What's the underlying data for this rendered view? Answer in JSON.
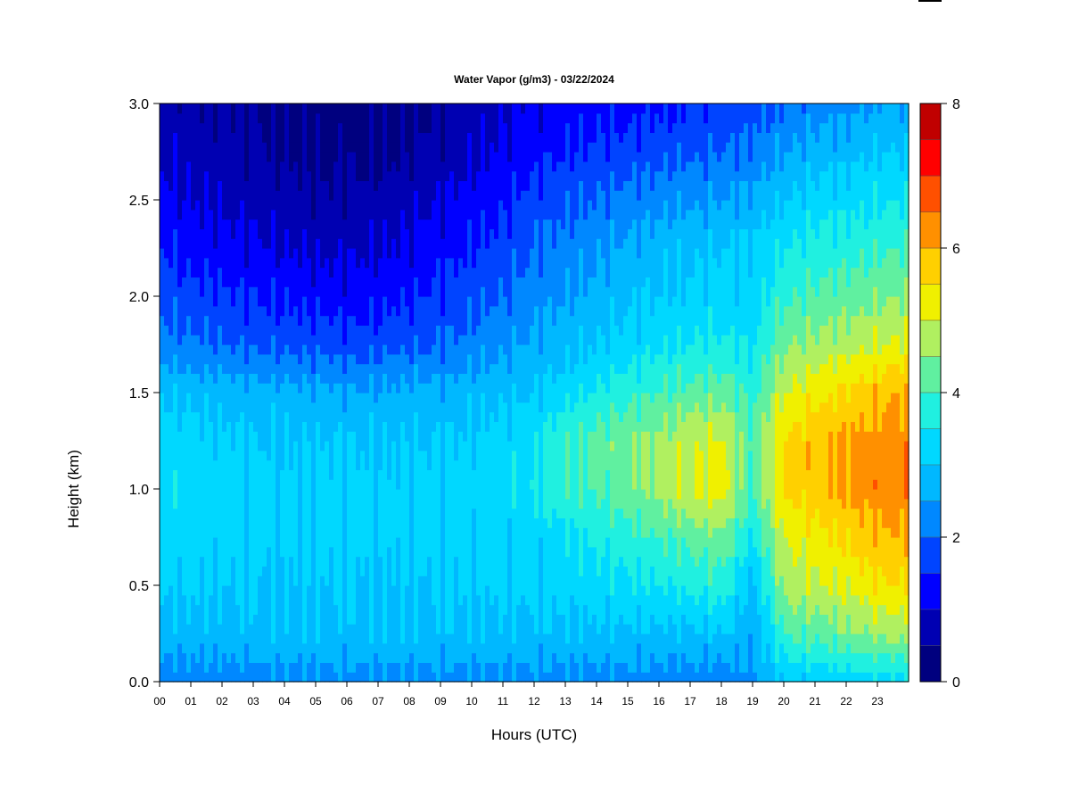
{
  "chart_data": {
    "type": "heatmap",
    "title": "Water Vapor (g/m3) - 03/22/2024",
    "xlabel": "Hours (UTC)",
    "ylabel": "Height (km)",
    "x_ticks": [
      "00",
      "01",
      "02",
      "03",
      "04",
      "05",
      "06",
      "07",
      "08",
      "09",
      "10",
      "11",
      "12",
      "13",
      "14",
      "15",
      "16",
      "17",
      "18",
      "19",
      "20",
      "21",
      "22",
      "23"
    ],
    "x_range": [
      0,
      24
    ],
    "y_ticks": [
      "0.0",
      "0.5",
      "1.0",
      "1.5",
      "2.0",
      "2.5",
      "3.0"
    ],
    "y_range": [
      0.0,
      3.0
    ],
    "colorbar": {
      "ticks": [
        "0",
        "2",
        "4",
        "6",
        "8"
      ],
      "range": [
        0,
        8
      ],
      "levels": 16,
      "colors": [
        "#00007f",
        "#0000b2",
        "#0000ff",
        "#0044ff",
        "#0088ff",
        "#00b8ff",
        "#00d8ff",
        "#20f0e0",
        "#60f0a0",
        "#b0f060",
        "#f0f000",
        "#ffd000",
        "#ff9000",
        "#ff5000",
        "#ff0000",
        "#c00000",
        "#800000"
      ]
    },
    "values_heights_km": [
      0.0,
      0.25,
      0.5,
      0.75,
      1.0,
      1.25,
      1.5,
      1.75,
      2.0,
      2.25,
      2.5,
      2.75,
      3.0
    ],
    "values_by_hour": [
      [
        2.2,
        2.8,
        3.1,
        3.2,
        3.3,
        3.2,
        3.0,
        2.2,
        1.9,
        1.5,
        1.2,
        0.9,
        0.7
      ],
      [
        2.2,
        2.8,
        3.1,
        3.2,
        3.3,
        3.2,
        2.9,
        2.1,
        1.7,
        1.3,
        1.0,
        0.8,
        0.6
      ],
      [
        2.2,
        2.8,
        3.0,
        3.2,
        3.3,
        3.1,
        2.8,
        2.0,
        1.6,
        1.2,
        0.9,
        0.7,
        0.5
      ],
      [
        2.2,
        2.9,
        3.0,
        3.1,
        3.2,
        3.0,
        2.7,
        1.9,
        1.5,
        1.1,
        0.8,
        0.6,
        0.5
      ],
      [
        2.3,
        2.9,
        3.0,
        3.1,
        3.1,
        3.0,
        2.7,
        1.8,
        1.4,
        1.0,
        0.7,
        0.5,
        0.4
      ],
      [
        2.3,
        2.9,
        3.0,
        3.1,
        3.1,
        3.0,
        2.6,
        1.8,
        1.3,
        0.9,
        0.6,
        0.4,
        0.3
      ],
      [
        2.3,
        2.9,
        3.0,
        3.1,
        3.1,
        3.0,
        2.6,
        1.7,
        1.2,
        0.9,
        0.6,
        0.4,
        0.3
      ],
      [
        2.3,
        2.9,
        3.0,
        3.1,
        3.1,
        3.0,
        2.6,
        1.8,
        1.3,
        1.0,
        0.7,
        0.4,
        0.3
      ],
      [
        2.3,
        2.9,
        3.0,
        3.1,
        3.1,
        3.0,
        2.7,
        1.9,
        1.4,
        1.1,
        0.8,
        0.5,
        0.4
      ],
      [
        2.3,
        2.9,
        3.0,
        3.1,
        3.1,
        3.0,
        2.7,
        2.0,
        1.6,
        1.3,
        1.0,
        0.7,
        0.5
      ],
      [
        2.3,
        2.9,
        3.1,
        3.1,
        3.2,
        3.1,
        2.8,
        2.2,
        1.8,
        1.5,
        1.2,
        0.9,
        0.7
      ],
      [
        2.3,
        2.9,
        3.1,
        3.1,
        3.3,
        3.2,
        2.9,
        2.4,
        2.0,
        1.7,
        1.4,
        1.1,
        0.9
      ],
      [
        2.3,
        2.9,
        3.1,
        3.2,
        3.5,
        3.4,
        3.0,
        2.6,
        2.3,
        2.0,
        1.7,
        1.3,
        1.1
      ],
      [
        2.3,
        2.9,
        3.2,
        3.4,
        3.9,
        3.9,
        3.3,
        2.8,
        2.5,
        2.2,
        1.9,
        1.5,
        1.2
      ],
      [
        2.3,
        2.9,
        3.3,
        3.6,
        4.1,
        4.2,
        3.6,
        3.0,
        2.7,
        2.4,
        2.0,
        1.6,
        1.3
      ],
      [
        2.3,
        2.9,
        3.4,
        3.8,
        4.3,
        4.4,
        3.8,
        3.2,
        2.9,
        2.6,
        2.2,
        1.7,
        1.3
      ],
      [
        2.2,
        2.9,
        3.5,
        4.0,
        4.6,
        4.6,
        4.0,
        3.4,
        3.0,
        2.8,
        2.3,
        1.8,
        1.4
      ],
      [
        2.2,
        2.9,
        3.6,
        4.2,
        5.0,
        4.9,
        4.2,
        3.5,
        3.1,
        2.9,
        2.4,
        1.9,
        1.5
      ],
      [
        2.1,
        3.0,
        3.8,
        4.4,
        5.3,
        5.1,
        4.3,
        3.6,
        3.2,
        3.0,
        2.5,
        2.0,
        1.6
      ],
      [
        2.4,
        2.6,
        2.8,
        3.5,
        4.0,
        4.1,
        3.8,
        3.4,
        3.2,
        3.1,
        2.6,
        2.1,
        1.8
      ],
      [
        3.0,
        4.0,
        4.7,
        5.0,
        5.6,
        5.5,
        5.0,
        4.4,
        3.9,
        3.5,
        3.0,
        2.5,
        2.0
      ],
      [
        3.1,
        4.2,
        4.9,
        5.3,
        5.8,
        5.9,
        5.3,
        4.6,
        4.1,
        3.7,
        3.2,
        2.7,
        2.2
      ],
      [
        3.2,
        4.4,
        5.1,
        5.6,
        6.1,
        6.1,
        5.6,
        4.8,
        4.2,
        3.8,
        3.3,
        2.8,
        2.3
      ],
      [
        3.3,
        4.6,
        5.4,
        5.9,
        6.3,
        6.2,
        5.9,
        5.0,
        4.4,
        3.9,
        3.4,
        3.0,
        2.5
      ],
      [
        3.3,
        4.7,
        5.5,
        6.0,
        6.4,
        6.3,
        6.0,
        5.1,
        4.5,
        4.0,
        3.5,
        3.0,
        2.5
      ]
    ]
  }
}
